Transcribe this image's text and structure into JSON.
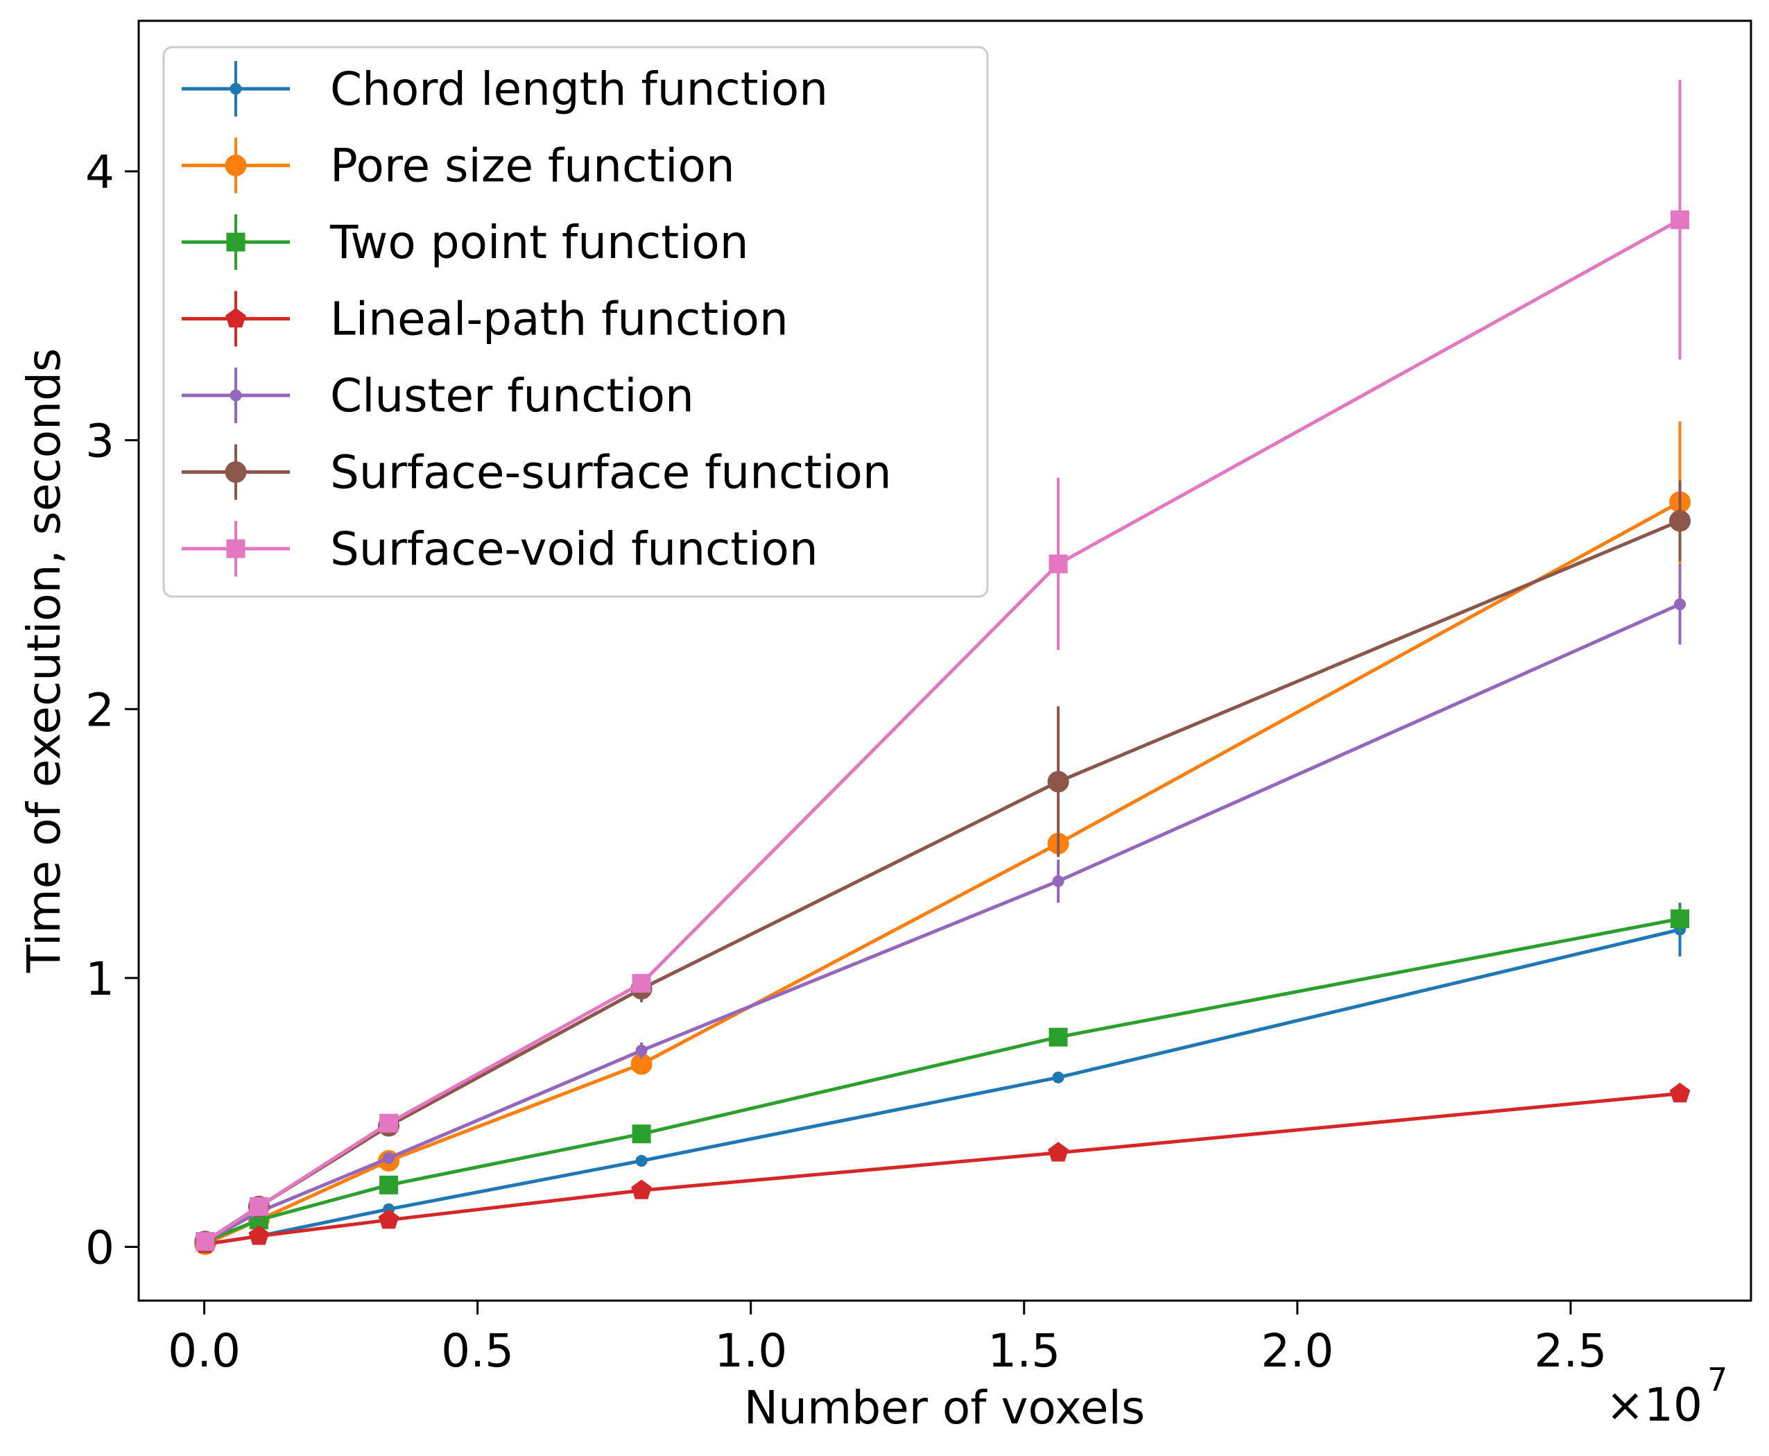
{
  "chart_data": {
    "type": "line",
    "title": "",
    "xlabel": "Number of voxels",
    "ylabel": "Time of execution, seconds",
    "x_offset_label": "×10",
    "x_offset_exponent": "7",
    "xlim": [
      -0.12,
      2.83
    ],
    "ylim": [
      -0.2,
      4.56
    ],
    "x_scale_factor": 10000000,
    "xticks": [
      0.0,
      0.5,
      1.0,
      1.5,
      2.0,
      2.5
    ],
    "xtick_labels": [
      "0.0",
      "0.5",
      "1.0",
      "1.5",
      "2.0",
      "2.5"
    ],
    "yticks": [
      0,
      1,
      2,
      3,
      4
    ],
    "ytick_labels": [
      "0",
      "1",
      "2",
      "3",
      "4"
    ],
    "grid": false,
    "legend_position": "top-left",
    "x": [
      15625,
      1000000,
      3375000,
      8000000,
      15625000,
      27000000
    ],
    "series": [
      {
        "name": "Chord length function",
        "color": "#1f77b4",
        "marker": "point",
        "values": [
          0.01,
          0.04,
          0.14,
          0.32,
          0.63,
          1.18
        ],
        "errors": [
          0.0,
          0.0,
          0.0,
          0.0,
          0.0,
          0.1
        ]
      },
      {
        "name": "Pore size function",
        "color": "#ff7f0e",
        "marker": "circle",
        "values": [
          0.01,
          0.1,
          0.32,
          0.68,
          1.5,
          2.77
        ],
        "errors": [
          0.0,
          0.0,
          0.0,
          0.0,
          0.05,
          0.3
        ]
      },
      {
        "name": "Two point function",
        "color": "#2ca02c",
        "marker": "square",
        "values": [
          0.02,
          0.1,
          0.23,
          0.42,
          0.78,
          1.22
        ],
        "errors": [
          0.0,
          0.0,
          0.0,
          0.0,
          0.0,
          0.05
        ]
      },
      {
        "name": "Lineal-path function",
        "color": "#d62728",
        "marker": "pentagon",
        "values": [
          0.01,
          0.04,
          0.1,
          0.21,
          0.35,
          0.57
        ],
        "errors": [
          0.0,
          0.0,
          0.0,
          0.0,
          0.0,
          0.0
        ]
      },
      {
        "name": "Cluster function",
        "color": "#9467bd",
        "marker": "point",
        "values": [
          0.02,
          0.13,
          0.33,
          0.73,
          1.36,
          2.39
        ],
        "errors": [
          0.0,
          0.0,
          0.0,
          0.03,
          0.08,
          0.15
        ]
      },
      {
        "name": "Surface-surface function",
        "color": "#8c564b",
        "marker": "circle",
        "values": [
          0.02,
          0.15,
          0.45,
          0.96,
          1.73,
          2.7
        ],
        "errors": [
          0.0,
          0.0,
          0.0,
          0.05,
          0.28,
          0.15
        ]
      },
      {
        "name": "Surface-void function",
        "color": "#e377c2",
        "marker": "square",
        "values": [
          0.02,
          0.15,
          0.46,
          0.98,
          2.54,
          3.82
        ],
        "errors": [
          0.0,
          0.0,
          0.0,
          0.03,
          0.32,
          0.52
        ]
      }
    ]
  }
}
